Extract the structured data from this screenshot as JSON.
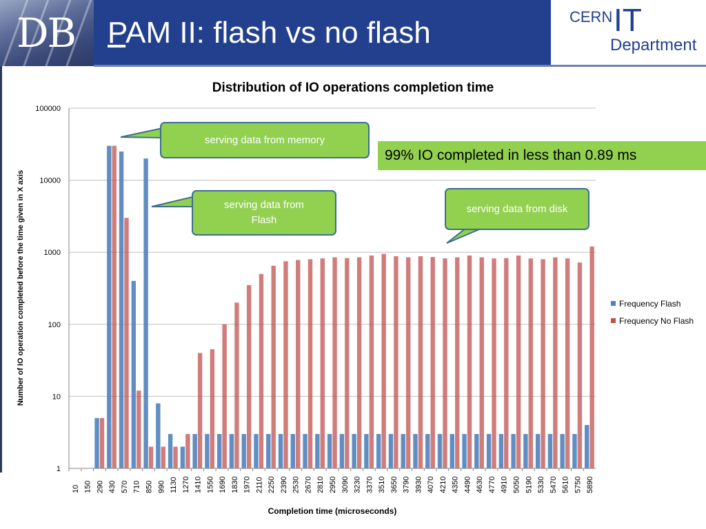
{
  "slide": {
    "title_first": "P",
    "title_rest": "AM II: flash vs no flash",
    "logo_text": "DB",
    "cern_label": "CERN",
    "it_label": "IT",
    "department_label": "Department"
  },
  "callouts": {
    "memory": "serving data from memory",
    "flash": "serving data from Flash",
    "disk": "serving data from disk"
  },
  "note": "99% IO completed in less than 0.89 ms",
  "chart_data": {
    "type": "bar",
    "title": "Distribution of IO operations completion time",
    "xlabel": "Completion time (microseconds)",
    "ylabel": "Number of IO operation completed before the time given in X axis",
    "yscale": "log",
    "ylim": [
      1,
      100000
    ],
    "yticks": [
      "100000",
      "10000",
      "1000",
      "100",
      "10",
      "1"
    ],
    "grid": true,
    "legend_position": "right",
    "categories": [
      "10",
      "150",
      "290",
      "430",
      "570",
      "710",
      "850",
      "990",
      "1130",
      "1270",
      "1410",
      "1550",
      "1690",
      "1830",
      "1970",
      "2110",
      "2250",
      "2390",
      "2530",
      "2670",
      "2810",
      "2950",
      "3090",
      "3230",
      "3370",
      "3510",
      "3650",
      "3790",
      "3930",
      "4070",
      "4210",
      "4350",
      "4490",
      "4630",
      "4770",
      "4910",
      "5050",
      "5190",
      "5330",
      "5470",
      "5610",
      "5750",
      "5890"
    ],
    "series": [
      {
        "name": "Frequency Flash",
        "color": "#4f81bd",
        "values": [
          1,
          1,
          5,
          30000,
          25000,
          400,
          20000,
          8,
          3,
          2,
          3,
          3,
          3,
          3,
          3,
          3,
          3,
          3,
          3,
          3,
          3,
          3,
          3,
          3,
          3,
          3,
          3,
          3,
          3,
          3,
          3,
          3,
          3,
          3,
          3,
          3,
          3,
          3,
          3,
          3,
          3,
          3,
          4
        ]
      },
      {
        "name": "Frequency No Flash",
        "color": "#c0504d",
        "values": [
          1,
          1,
          5,
          30000,
          3000,
          12,
          2,
          2,
          2,
          3,
          40,
          45,
          100,
          200,
          350,
          500,
          650,
          750,
          780,
          800,
          820,
          850,
          830,
          850,
          900,
          950,
          880,
          850,
          880,
          860,
          820,
          850,
          900,
          850,
          820,
          830,
          900,
          820,
          800,
          850,
          820,
          720,
          1200
        ]
      }
    ]
  }
}
